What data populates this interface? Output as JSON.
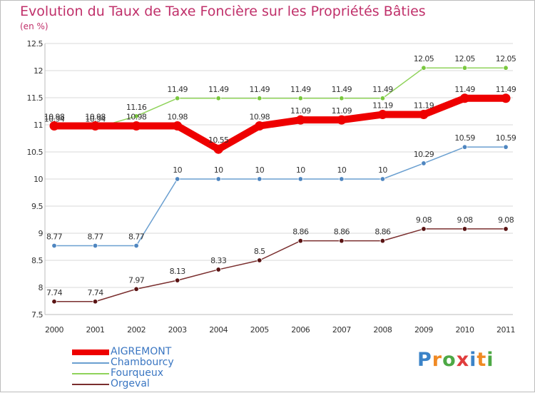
{
  "header": {
    "title": "Evolution du Taux de Taxe Foncière sur les Propriétés Bâties",
    "unit": "(en %)"
  },
  "colors": {
    "title": "#c0306a",
    "grid": "#d9d9d9",
    "axis_text": "#333333",
    "legend_text": "#3a76c2"
  },
  "logo": {
    "text": "Proxiti",
    "letters": [
      "P",
      "r",
      "o",
      "x",
      "i",
      "t",
      "i"
    ],
    "colors": [
      "#3b83c8",
      "#f08a24",
      "#4da845",
      "#e03c3c",
      "#3b83c8",
      "#f08a24",
      "#4da845"
    ]
  },
  "chart_data": {
    "type": "line",
    "title": "Evolution du Taux de Taxe Foncière sur les Propriétés Bâties",
    "ylabel": "(en %)",
    "xlabel": "",
    "x": [
      "2000",
      "2001",
      "2002",
      "2003",
      "2004",
      "2005",
      "2006",
      "2007",
      "2008",
      "2009",
      "2010",
      "2011"
    ],
    "ylim": [
      7.5,
      12.5
    ],
    "yticks": [
      "7.5",
      "8",
      "8.5",
      "9",
      "9.5",
      "10",
      "10.5",
      "11",
      "11.5",
      "12",
      "12.5"
    ],
    "grid": true,
    "legend_position": "bottom-left",
    "series": [
      {
        "name": "Orgeval",
        "color": "#7a2e2e",
        "marker": "#5a1414",
        "values": [
          7.74,
          7.74,
          7.97,
          8.13,
          8.33,
          8.5,
          8.86,
          8.86,
          8.86,
          9.08,
          9.08,
          9.08
        ],
        "labels": [
          "7.74",
          "7.74",
          "7.97",
          "8.13",
          "8.33",
          "8.5",
          "8.86",
          "8.86",
          "8.86",
          "9.08",
          "9.08",
          "9.08"
        ]
      },
      {
        "name": "Chambourcy",
        "color": "#6a9fd0",
        "marker": "#4f86c0",
        "values": [
          8.77,
          8.77,
          8.77,
          10,
          10,
          10,
          10,
          10,
          10,
          10.29,
          10.59,
          10.59
        ],
        "labels": [
          "8.77",
          "8.77",
          "8.77",
          "10",
          "10",
          "10",
          "10",
          "10",
          "10",
          "10.29",
          "10.59",
          "10.59"
        ]
      },
      {
        "name": "Fourqueux",
        "color": "#8fd35a",
        "marker": "#7ac83f",
        "values": [
          10.94,
          10.94,
          11.16,
          11.49,
          11.49,
          11.49,
          11.49,
          11.49,
          11.49,
          12.05,
          12.05,
          12.05
        ],
        "labels": [
          "10.94",
          "10.94",
          "11.16",
          "11.49",
          "11.49",
          "11.49",
          "11.49",
          "11.49",
          "11.49",
          "12.05",
          "12.05",
          "12.05"
        ]
      },
      {
        "name": "AIGREMONT",
        "color": "#ee0000",
        "marker": "#ee0000",
        "values": [
          10.98,
          10.98,
          10.98,
          10.98,
          10.55,
          10.98,
          11.09,
          11.09,
          11.19,
          11.19,
          11.49,
          11.49
        ],
        "labels": [
          "10.98",
          "10.98",
          "10.98",
          "10.98",
          "10.55",
          "10.98",
          "11.09",
          "11.09",
          "11.19",
          "11.19",
          "11.49",
          "11.49"
        ]
      }
    ],
    "legend": [
      "AIGREMONT",
      "Chambourcy",
      "Fourqueux",
      "Orgeval"
    ]
  }
}
